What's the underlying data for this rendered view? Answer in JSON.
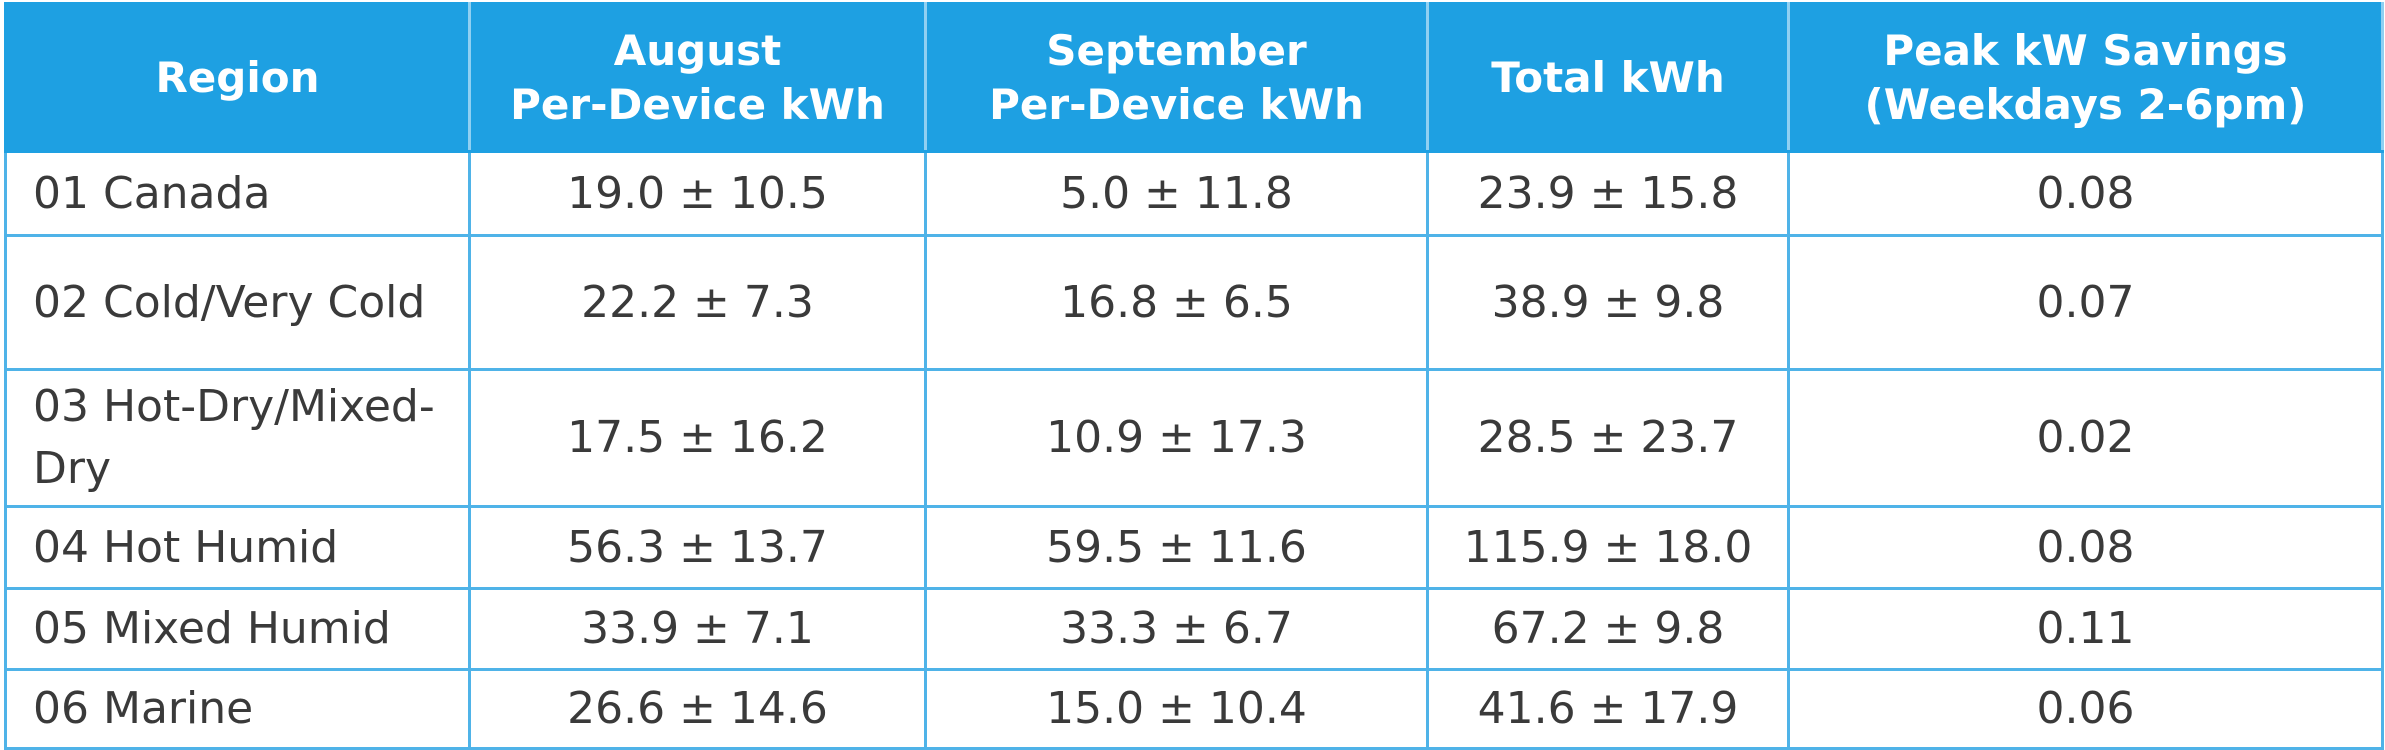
{
  "table": {
    "header": [
      "Region",
      "August\nPer-Device kWh",
      "September\nPer-Device kWh",
      "Total kWh",
      "Peak kW Savings\n(Weekdays 2-6pm)"
    ],
    "rows": [
      [
        "01 Canada",
        "19.0 ± 10.5",
        "5.0 ± 11.8",
        "23.9 ± 15.8",
        "0.08"
      ],
      [
        "02 Cold/Very Cold",
        "22.2 ± 7.3",
        "16.8 ± 6.5",
        "38.9 ± 9.8",
        "0.07"
      ],
      [
        "03 Hot-Dry/Mixed-Dry",
        "17.5 ± 16.2",
        "10.9 ± 17.3",
        "28.5 ± 23.7",
        "0.02"
      ],
      [
        "04 Hot Humid",
        "56.3 ± 13.7",
        "59.5 ± 11.6",
        "115.9 ± 18.0",
        "0.08"
      ],
      [
        "05 Mixed Humid",
        "33.9 ± 7.1",
        "33.3 ± 6.7",
        "67.2 ± 9.8",
        "0.11"
      ],
      [
        "06 Marine",
        "26.6 ± 14.6",
        "15.0 ± 10.4",
        "41.6 ± 17.9",
        "0.06"
      ]
    ]
  }
}
